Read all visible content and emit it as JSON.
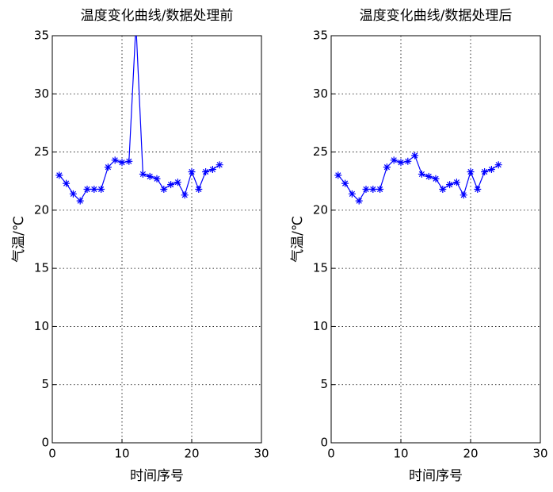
{
  "chart_data": [
    {
      "type": "line",
      "title": "温度变化曲线/数据处理前",
      "x_label": "时间序号",
      "y_label": "气温/℃",
      "x": [
        1,
        2,
        3,
        4,
        5,
        6,
        7,
        8,
        9,
        10,
        11,
        12,
        13,
        14,
        15,
        16,
        17,
        18,
        19,
        20,
        21,
        22,
        23,
        24
      ],
      "series": [
        {
          "color": "#0000ff",
          "marker": "*",
          "values": [
            23.0,
            22.3,
            21.4,
            20.8,
            21.8,
            21.8,
            21.8,
            23.7,
            24.3,
            24.1,
            24.2,
            36,
            23.1,
            22.9,
            22.7,
            21.8,
            22.2,
            22.4,
            21.3,
            23.3,
            21.8,
            23.3,
            23.5,
            23.9
          ]
        }
      ],
      "xlim": [
        0,
        30
      ],
      "ylim": [
        0,
        35
      ],
      "xticks": [
        0,
        10,
        20,
        30
      ],
      "yticks": [
        0,
        5,
        10,
        15,
        20,
        25,
        30,
        35
      ],
      "grid": true
    },
    {
      "type": "line",
      "title": "温度变化曲线/数据处理后",
      "x_label": "时间序号",
      "y_label": "气温/℃",
      "x": [
        1,
        2,
        3,
        4,
        5,
        6,
        7,
        8,
        9,
        10,
        11,
        12,
        13,
        14,
        15,
        16,
        17,
        18,
        19,
        20,
        21,
        22,
        23,
        24
      ],
      "series": [
        {
          "color": "#0000ff",
          "marker": "*",
          "values": [
            23.0,
            22.3,
            21.4,
            20.8,
            21.8,
            21.8,
            21.8,
            23.7,
            24.3,
            24.1,
            24.2,
            24.7,
            23.1,
            22.9,
            22.7,
            21.8,
            22.2,
            22.4,
            21.3,
            23.3,
            21.8,
            23.3,
            23.5,
            23.9
          ]
        }
      ],
      "xlim": [
        0,
        30
      ],
      "ylim": [
        0,
        35
      ],
      "xticks": [
        0,
        10,
        20,
        30
      ],
      "yticks": [
        0,
        5,
        10,
        15,
        20,
        25,
        30,
        35
      ],
      "grid": true
    }
  ]
}
